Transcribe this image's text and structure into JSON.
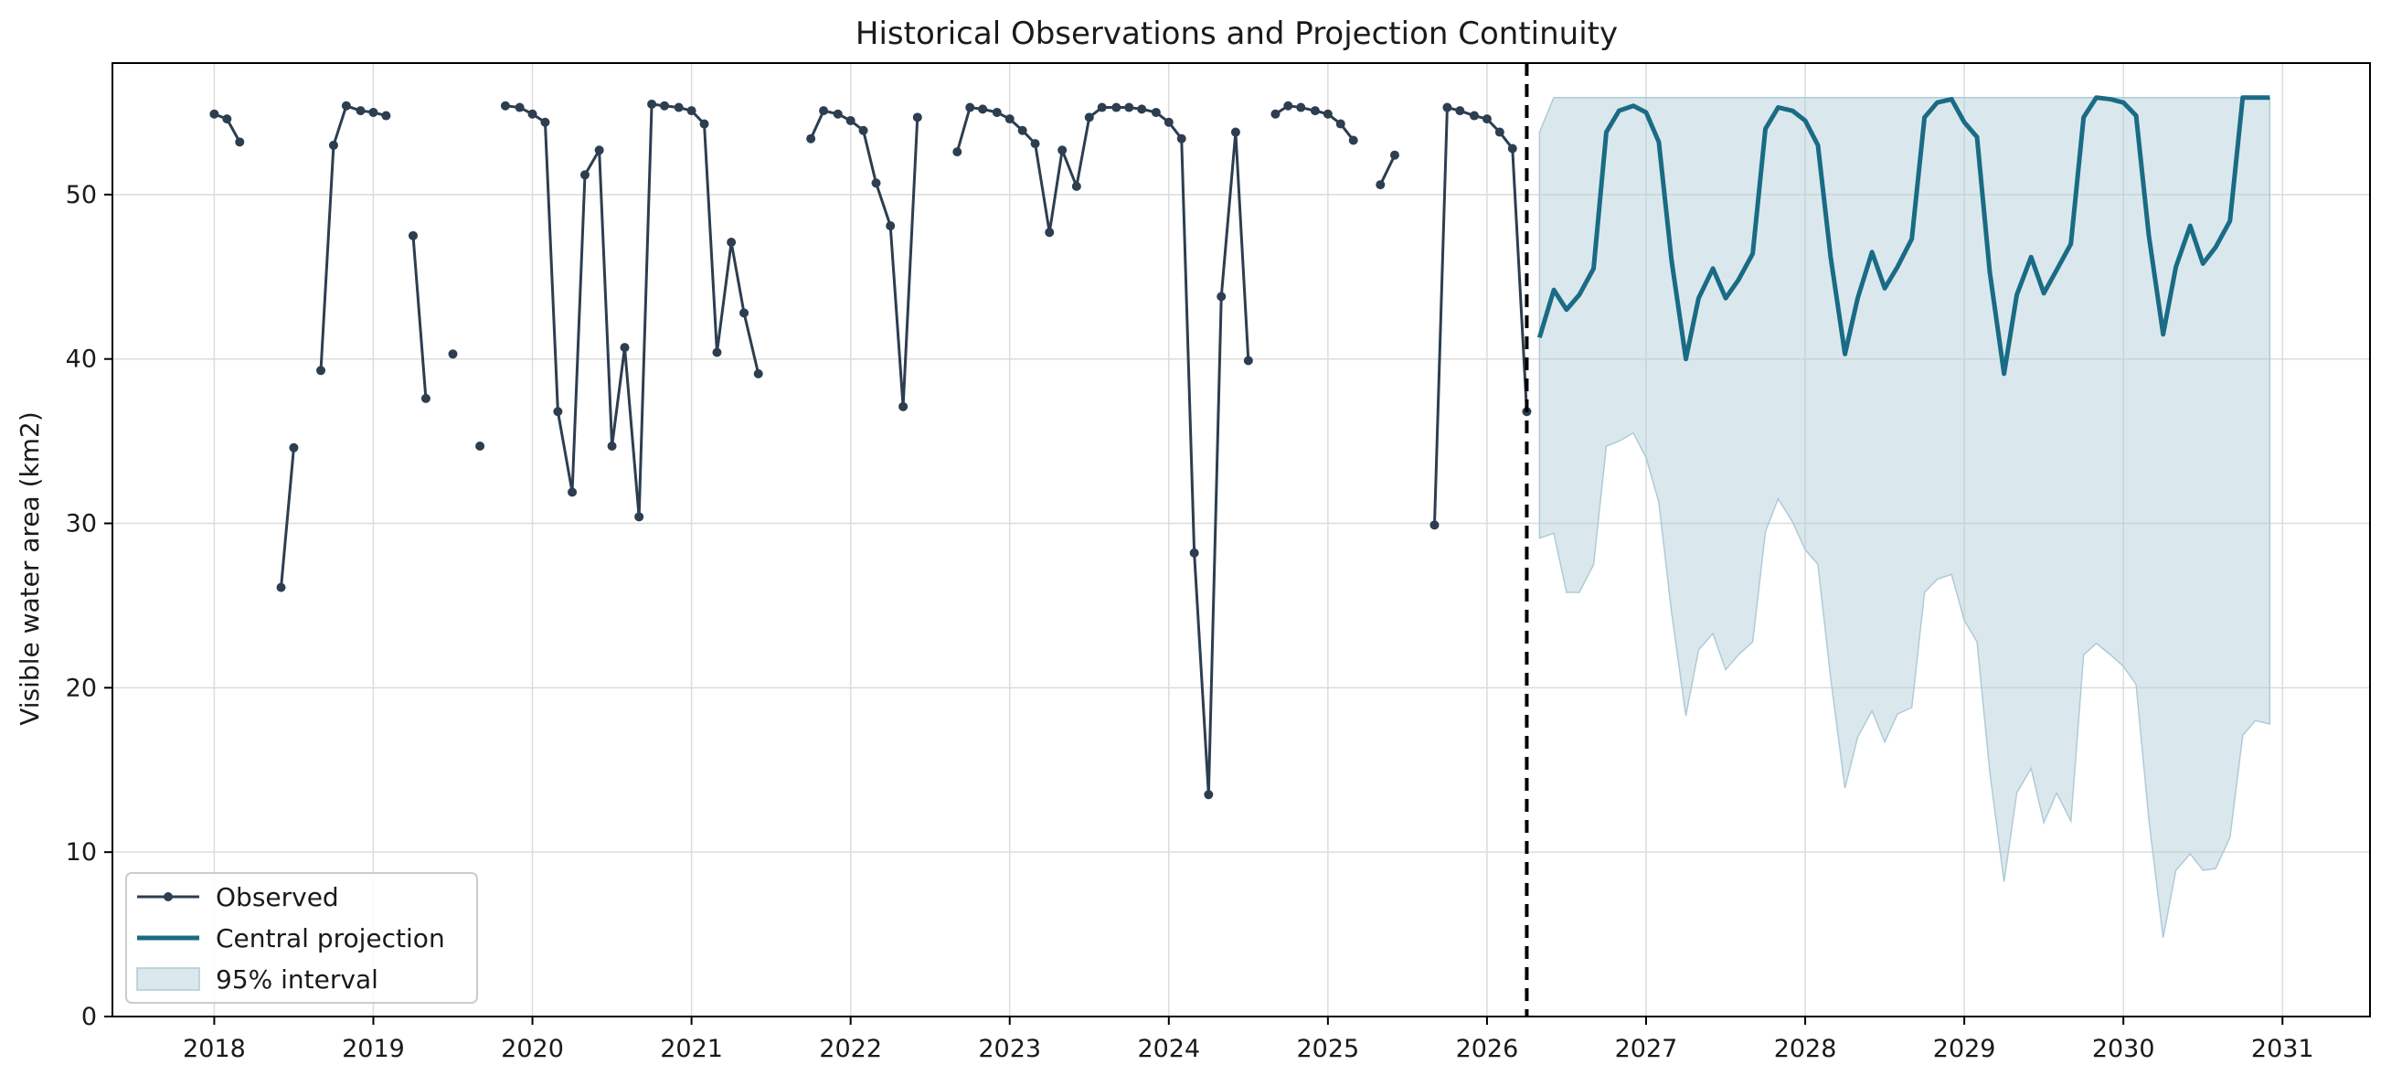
{
  "chart_data": {
    "type": "line",
    "title": "Historical Observations and Projection Continuity",
    "xlabel": "",
    "ylabel": "Visible water area (km2)",
    "xlim": [
      2017.36,
      2031.55
    ],
    "ylim": [
      0,
      58
    ],
    "x_ticks": [
      2018,
      2019,
      2020,
      2021,
      2022,
      2023,
      2024,
      2025,
      2026,
      2027,
      2028,
      2029,
      2030,
      2031
    ],
    "y_ticks": [
      0,
      10,
      20,
      30,
      40,
      50
    ],
    "grid": true,
    "legend_position": "lower-left",
    "divider_x": 2026.25,
    "colors": {
      "observed": "#2c3e50",
      "projection": "#1a6b85",
      "interval": "#aecbd6",
      "divider": "#000000"
    },
    "legend": [
      {
        "label": "Observed",
        "kind": "observed"
      },
      {
        "label": "Central projection",
        "kind": "projection"
      },
      {
        "label": "95% interval",
        "kind": "interval"
      }
    ],
    "observed_segments": [
      [
        [
          2018.0,
          54.9
        ],
        [
          2018.08,
          54.6
        ],
        [
          2018.16,
          53.2
        ]
      ],
      [
        [
          2018.42,
          26.1
        ],
        [
          2018.5,
          34.6
        ]
      ],
      [
        [
          2018.67,
          39.3
        ],
        [
          2018.75,
          53.0
        ],
        [
          2018.83,
          55.4
        ],
        [
          2018.92,
          55.1
        ],
        [
          2019.0,
          55.0
        ],
        [
          2019.08,
          54.8
        ]
      ],
      [
        [
          2019.25,
          47.5
        ],
        [
          2019.33,
          37.6
        ]
      ],
      [
        [
          2019.5,
          40.3
        ]
      ],
      [
        [
          2019.67,
          34.7
        ]
      ],
      [
        [
          2019.83,
          55.4
        ],
        [
          2019.92,
          55.3
        ],
        [
          2020.0,
          54.9
        ],
        [
          2020.08,
          54.4
        ],
        [
          2020.16,
          36.8
        ],
        [
          2020.25,
          31.9
        ],
        [
          2020.33,
          51.2
        ],
        [
          2020.42,
          52.7
        ],
        [
          2020.5,
          34.7
        ],
        [
          2020.58,
          40.7
        ],
        [
          2020.67,
          30.4
        ],
        [
          2020.75,
          55.5
        ],
        [
          2020.83,
          55.4
        ],
        [
          2020.92,
          55.3
        ],
        [
          2021.0,
          55.1
        ],
        [
          2021.08,
          54.3
        ],
        [
          2021.16,
          40.4
        ],
        [
          2021.25,
          47.1
        ],
        [
          2021.33,
          42.8
        ],
        [
          2021.42,
          39.1
        ]
      ],
      [
        [
          2021.75,
          53.4
        ],
        [
          2021.83,
          55.1
        ],
        [
          2021.92,
          54.9
        ],
        [
          2022.0,
          54.5
        ],
        [
          2022.08,
          53.9
        ],
        [
          2022.16,
          50.7
        ],
        [
          2022.25,
          48.1
        ],
        [
          2022.33,
          37.1
        ],
        [
          2022.42,
          54.7
        ]
      ],
      [
        [
          2022.67,
          52.6
        ],
        [
          2022.75,
          55.3
        ],
        [
          2022.83,
          55.2
        ],
        [
          2022.92,
          55.0
        ],
        [
          2023.0,
          54.6
        ],
        [
          2023.08,
          53.9
        ],
        [
          2023.16,
          53.1
        ],
        [
          2023.25,
          47.7
        ],
        [
          2023.33,
          52.7
        ],
        [
          2023.42,
          50.5
        ],
        [
          2023.5,
          54.7
        ],
        [
          2023.58,
          55.3
        ],
        [
          2023.67,
          55.3
        ],
        [
          2023.75,
          55.3
        ],
        [
          2023.83,
          55.2
        ],
        [
          2023.92,
          55.0
        ],
        [
          2024.0,
          54.4
        ],
        [
          2024.08,
          53.4
        ],
        [
          2024.16,
          28.2
        ],
        [
          2024.25,
          13.5
        ],
        [
          2024.33,
          43.8
        ],
        [
          2024.42,
          53.8
        ],
        [
          2024.5,
          39.9
        ]
      ],
      [
        [
          2024.67,
          54.9
        ],
        [
          2024.75,
          55.4
        ],
        [
          2024.83,
          55.3
        ],
        [
          2024.92,
          55.1
        ],
        [
          2025.0,
          54.9
        ],
        [
          2025.08,
          54.3
        ],
        [
          2025.16,
          53.3
        ]
      ],
      [
        [
          2025.33,
          50.6
        ],
        [
          2025.42,
          52.4
        ]
      ],
      [
        [
          2025.67,
          29.9
        ],
        [
          2025.75,
          55.3
        ],
        [
          2025.83,
          55.1
        ],
        [
          2025.92,
          54.8
        ],
        [
          2026.0,
          54.6
        ],
        [
          2026.08,
          53.8
        ],
        [
          2026.16,
          52.8
        ],
        [
          2026.25,
          36.8
        ]
      ]
    ],
    "projection": [
      [
        2026.33,
        41.3
      ],
      [
        2026.42,
        44.2
      ],
      [
        2026.5,
        43.0
      ],
      [
        2026.58,
        43.9
      ],
      [
        2026.67,
        45.5
      ],
      [
        2026.75,
        53.8
      ],
      [
        2026.83,
        55.1
      ],
      [
        2026.92,
        55.4
      ],
      [
        2027.0,
        55.0
      ],
      [
        2027.08,
        53.2
      ],
      [
        2027.16,
        46.0
      ],
      [
        2027.25,
        40.0
      ],
      [
        2027.33,
        43.7
      ],
      [
        2027.42,
        45.5
      ],
      [
        2027.5,
        43.7
      ],
      [
        2027.58,
        44.8
      ],
      [
        2027.67,
        46.4
      ],
      [
        2027.75,
        54.0
      ],
      [
        2027.83,
        55.3
      ],
      [
        2027.92,
        55.1
      ],
      [
        2028.0,
        54.5
      ],
      [
        2028.08,
        53.0
      ],
      [
        2028.16,
        46.2
      ],
      [
        2028.25,
        40.3
      ],
      [
        2028.33,
        43.7
      ],
      [
        2028.42,
        46.5
      ],
      [
        2028.5,
        44.3
      ],
      [
        2028.58,
        45.6
      ],
      [
        2028.67,
        47.3
      ],
      [
        2028.75,
        54.7
      ],
      [
        2028.83,
        55.6
      ],
      [
        2028.92,
        55.8
      ],
      [
        2029.0,
        54.4
      ],
      [
        2029.08,
        53.5
      ],
      [
        2029.16,
        45.3
      ],
      [
        2029.25,
        39.1
      ],
      [
        2029.33,
        43.9
      ],
      [
        2029.42,
        46.2
      ],
      [
        2029.5,
        44.0
      ],
      [
        2029.58,
        45.4
      ],
      [
        2029.67,
        47.0
      ],
      [
        2029.75,
        54.7
      ],
      [
        2029.83,
        55.9
      ],
      [
        2029.92,
        55.8
      ],
      [
        2030.0,
        55.6
      ],
      [
        2030.08,
        54.8
      ],
      [
        2030.16,
        47.5
      ],
      [
        2030.25,
        41.5
      ],
      [
        2030.33,
        45.6
      ],
      [
        2030.42,
        48.1
      ],
      [
        2030.5,
        45.8
      ],
      [
        2030.58,
        46.8
      ],
      [
        2030.67,
        48.4
      ],
      [
        2030.75,
        55.9
      ],
      [
        2030.83,
        55.9
      ],
      [
        2030.92,
        55.9
      ]
    ],
    "interval_upper": [
      [
        2026.33,
        53.8
      ],
      [
        2026.42,
        55.9
      ],
      [
        2030.92,
        55.9
      ]
    ],
    "interval_lower": [
      [
        2026.33,
        29.1
      ],
      [
        2026.42,
        29.4
      ],
      [
        2026.5,
        25.8
      ],
      [
        2026.58,
        25.8
      ],
      [
        2026.67,
        27.5
      ],
      [
        2026.75,
        34.7
      ],
      [
        2026.83,
        35.0
      ],
      [
        2026.92,
        35.5
      ],
      [
        2027.0,
        34.0
      ],
      [
        2027.08,
        31.3
      ],
      [
        2027.16,
        24.6
      ],
      [
        2027.25,
        18.3
      ],
      [
        2027.33,
        22.3
      ],
      [
        2027.42,
        23.3
      ],
      [
        2027.5,
        21.1
      ],
      [
        2027.58,
        22.0
      ],
      [
        2027.67,
        22.8
      ],
      [
        2027.75,
        29.5
      ],
      [
        2027.83,
        31.5
      ],
      [
        2027.92,
        30.1
      ],
      [
        2028.0,
        28.4
      ],
      [
        2028.08,
        27.5
      ],
      [
        2028.16,
        20.6
      ],
      [
        2028.25,
        13.9
      ],
      [
        2028.33,
        17.0
      ],
      [
        2028.42,
        18.6
      ],
      [
        2028.5,
        16.7
      ],
      [
        2028.58,
        18.4
      ],
      [
        2028.67,
        18.8
      ],
      [
        2028.75,
        25.8
      ],
      [
        2028.83,
        26.6
      ],
      [
        2028.92,
        26.9
      ],
      [
        2029.0,
        24.1
      ],
      [
        2029.08,
        22.8
      ],
      [
        2029.16,
        14.9
      ],
      [
        2029.25,
        8.2
      ],
      [
        2029.33,
        13.6
      ],
      [
        2029.42,
        15.1
      ],
      [
        2029.5,
        11.8
      ],
      [
        2029.58,
        13.6
      ],
      [
        2029.67,
        11.9
      ],
      [
        2029.75,
        22.0
      ],
      [
        2029.83,
        22.7
      ],
      [
        2029.92,
        22.0
      ],
      [
        2030.0,
        21.3
      ],
      [
        2030.08,
        20.2
      ],
      [
        2030.16,
        12.0
      ],
      [
        2030.25,
        4.8
      ],
      [
        2030.33,
        8.9
      ],
      [
        2030.42,
        9.9
      ],
      [
        2030.5,
        8.9
      ],
      [
        2030.58,
        9.0
      ],
      [
        2030.67,
        10.9
      ],
      [
        2030.75,
        17.1
      ],
      [
        2030.83,
        18.0
      ],
      [
        2030.92,
        17.8
      ]
    ]
  }
}
